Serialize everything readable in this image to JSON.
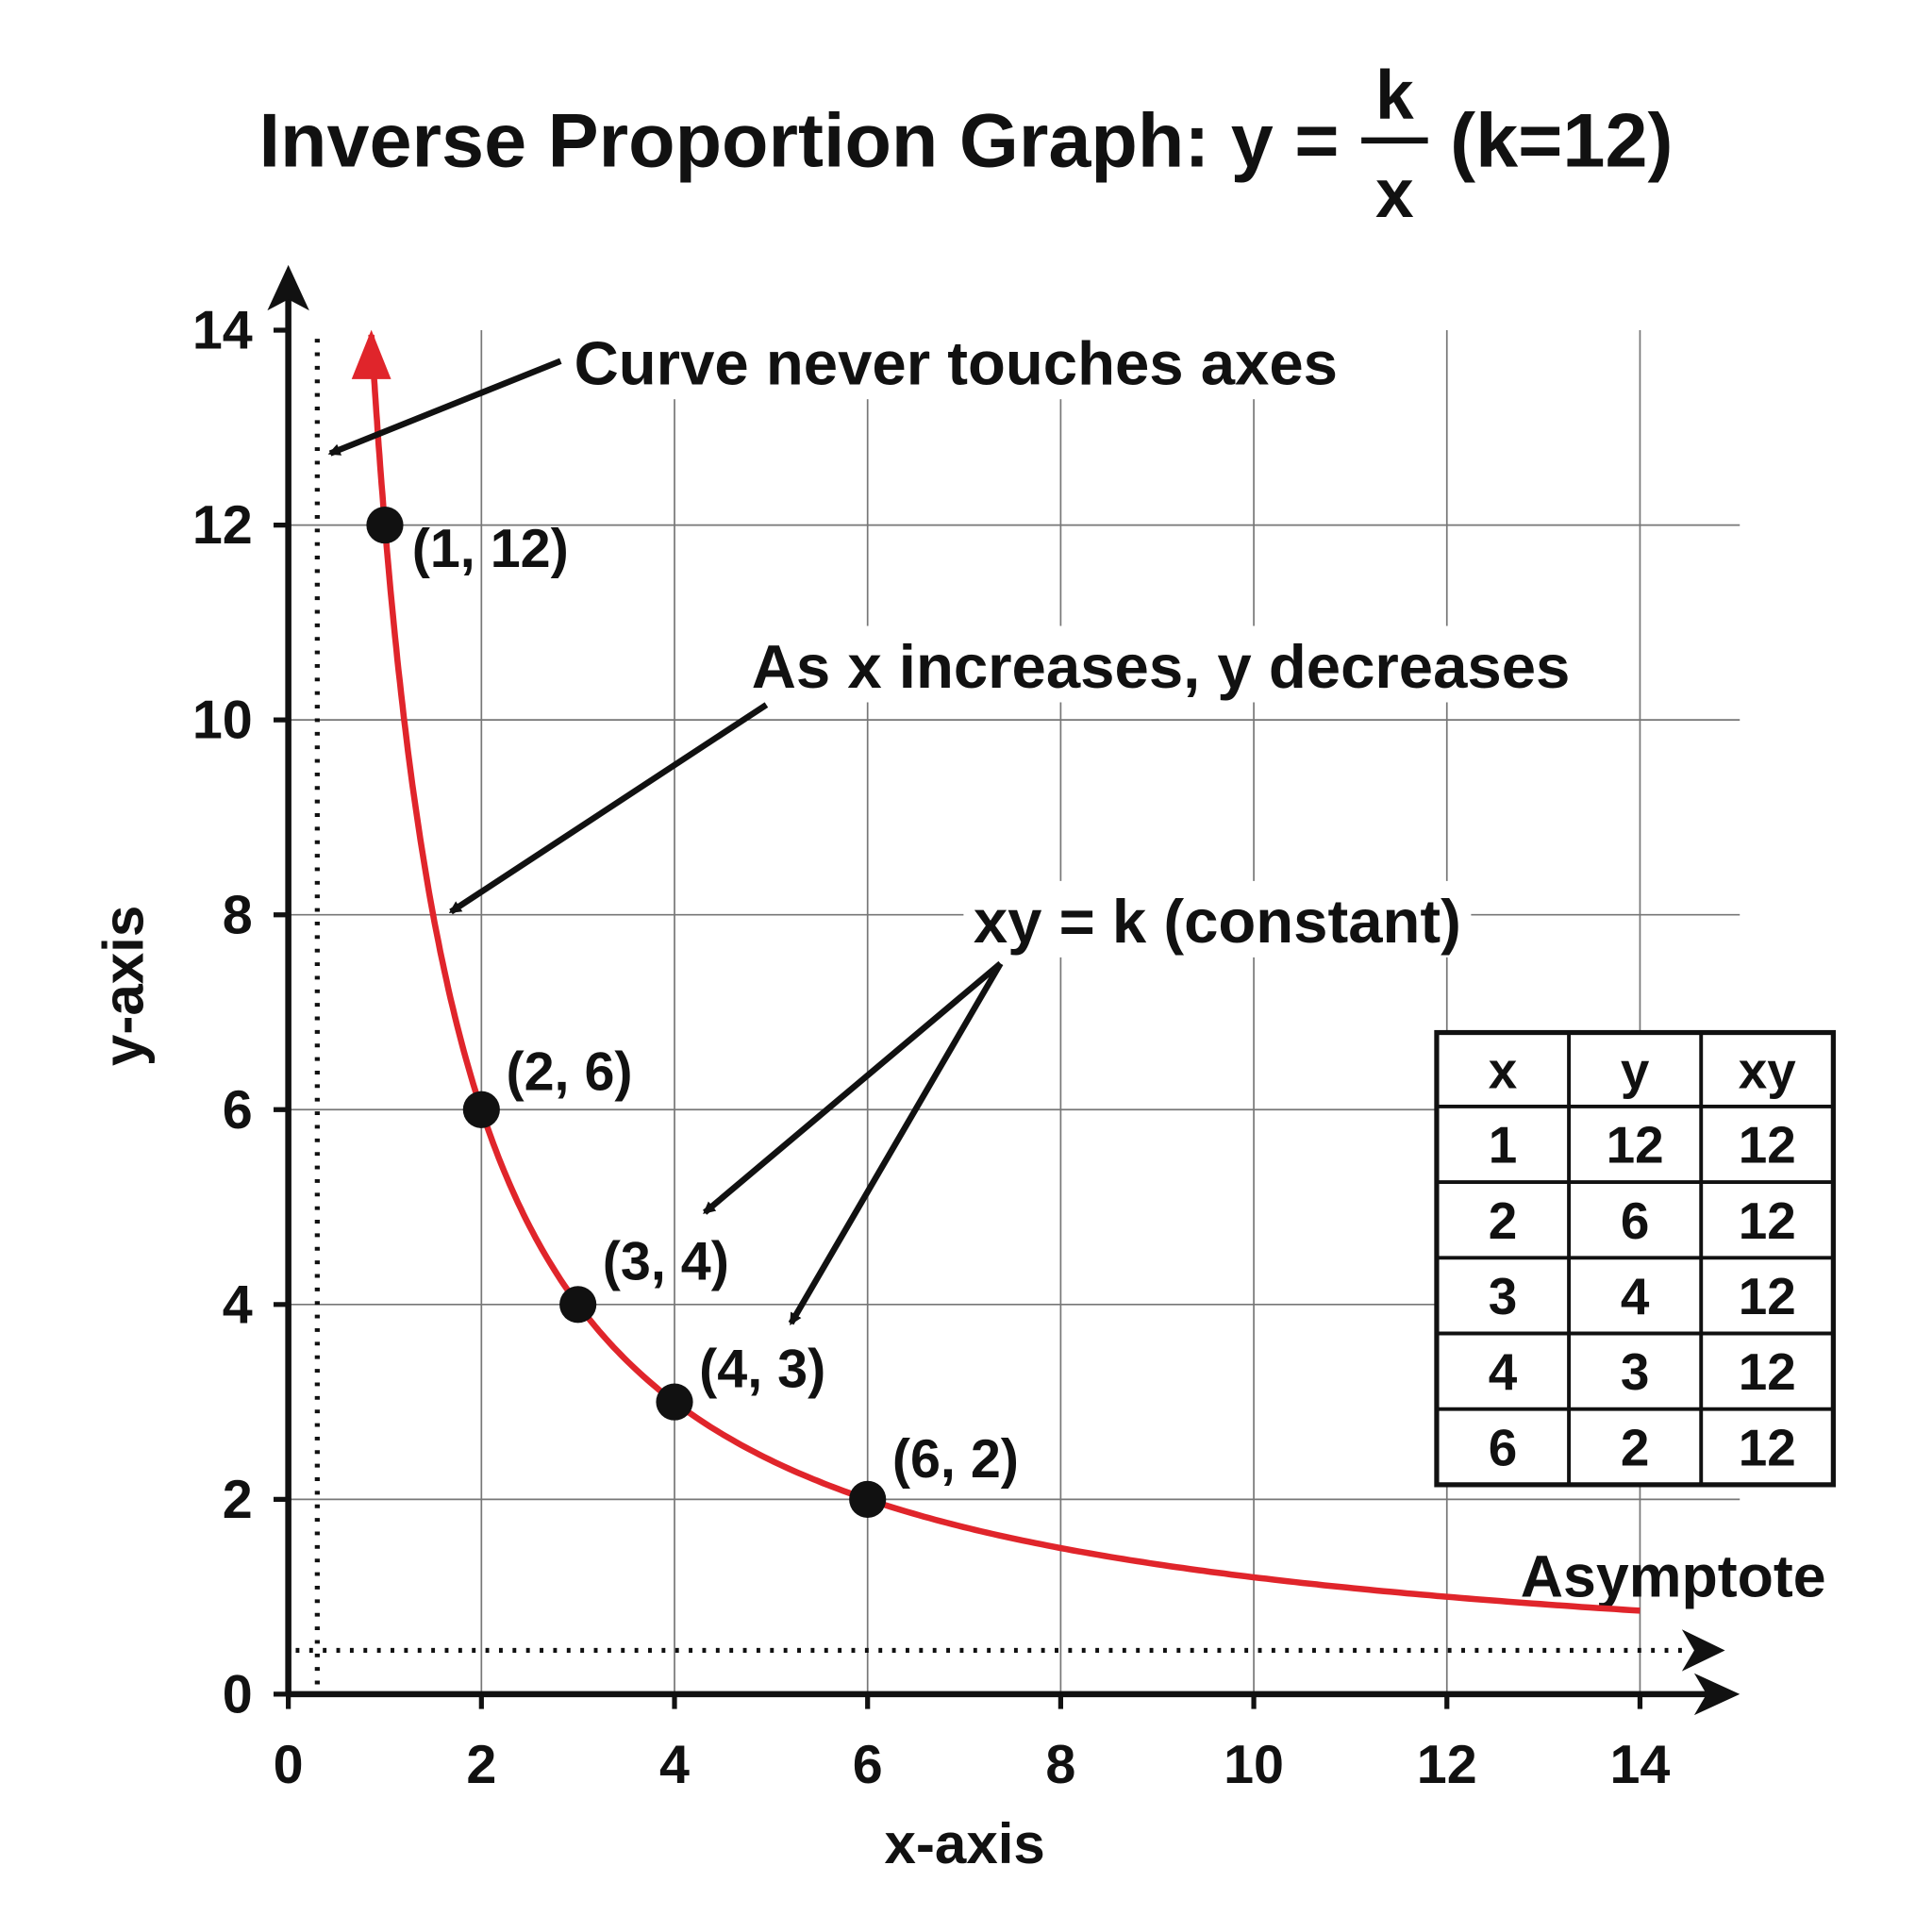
{
  "chart_data": {
    "type": "line",
    "title": {
      "prefix": "Inverse Proportion Graph: y =",
      "numerator": "k",
      "denominator": "x",
      "suffix": "(k=12)"
    },
    "xlabel": "x-axis",
    "ylabel": "y-axis",
    "xlim": [
      0,
      14
    ],
    "ylim": [
      0,
      14
    ],
    "xticks": [
      "0",
      "2",
      "4",
      "6",
      "8",
      "10",
      "12",
      "14"
    ],
    "yticks": [
      "0",
      "2",
      "4",
      "6",
      "8",
      "10",
      "12",
      "14"
    ],
    "grid": true,
    "k": 12,
    "curve_color": "#e0252b",
    "series": [
      {
        "function": "y = 12/x",
        "x_range": [
          0.86,
          14
        ]
      }
    ],
    "points": [
      {
        "x": 1,
        "y": 12,
        "label": "(1, 12)"
      },
      {
        "x": 2,
        "y": 6,
        "label": "(2, 6)"
      },
      {
        "x": 3,
        "y": 4,
        "label": "(3, 4)"
      },
      {
        "x": 4,
        "y": 3,
        "label": "(4, 3)"
      },
      {
        "x": 6,
        "y": 2,
        "label": "(6, 2)"
      }
    ],
    "asymptotes": {
      "vertical_x": 0.3,
      "horizontal_y": 0.45,
      "label": "Asymptote"
    },
    "annotations": [
      "Curve never touches axes",
      "As x increases, y decreases",
      "xy = k (constant)"
    ],
    "table": {
      "headers": [
        "x",
        "y",
        "xy"
      ],
      "rows": [
        [
          "1",
          "12",
          "12"
        ],
        [
          "2",
          "6",
          "12"
        ],
        [
          "3",
          "4",
          "12"
        ],
        [
          "4",
          "3",
          "12"
        ],
        [
          "6",
          "2",
          "12"
        ]
      ]
    }
  }
}
